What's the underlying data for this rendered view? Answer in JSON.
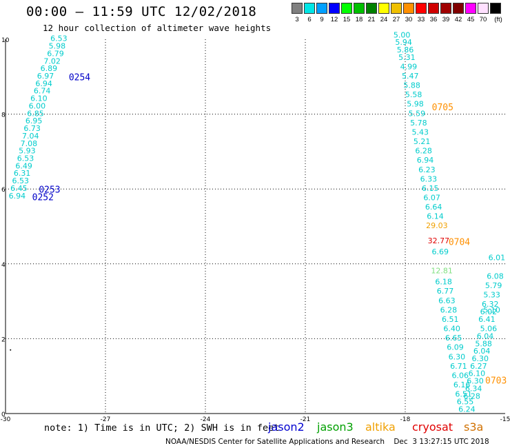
{
  "header": {
    "title": "00:00 – 11:59 UTC 12/02/2018",
    "subtitle": "12 hour collection of altimeter wave heights"
  },
  "color_scale": {
    "unit": "(ft)",
    "entries": [
      {
        "label": "3",
        "color": "#808080"
      },
      {
        "label": "6",
        "color": "#00e6e6"
      },
      {
        "label": "9",
        "color": "#00a0ff"
      },
      {
        "label": "12",
        "color": "#0000ff"
      },
      {
        "label": "15",
        "color": "#00ff00"
      },
      {
        "label": "18",
        "color": "#00c000"
      },
      {
        "label": "21",
        "color": "#008000"
      },
      {
        "label": "24",
        "color": "#ffff00"
      },
      {
        "label": "27",
        "color": "#f0c000"
      },
      {
        "label": "30",
        "color": "#ff9000"
      },
      {
        "label": "33",
        "color": "#ff0000"
      },
      {
        "label": "36",
        "color": "#d00000"
      },
      {
        "label": "39",
        "color": "#a00000"
      },
      {
        "label": "42",
        "color": "#800000"
      },
      {
        "label": "45",
        "color": "#ff00ff"
      },
      {
        "label": "70",
        "color": "#ffe0ff"
      },
      {
        "label": "(ft)",
        "color": "#000000"
      }
    ]
  },
  "map": {
    "lon_ticks": [
      "-30",
      "-27",
      "-24",
      "-21",
      "-18",
      "-15"
    ],
    "lat_ticks": [
      "0",
      "2",
      "4",
      "6",
      "8",
      "10"
    ],
    "lon_range": [
      -30,
      -15
    ],
    "lat_range": [
      0,
      10
    ],
    "grid_color": "#000000",
    "time_labels": [
      {
        "text": "0254",
        "lon": -28.1,
        "lat": 8.9,
        "color": "#0000c8"
      },
      {
        "text": "0253",
        "lon": -29.0,
        "lat": 5.9,
        "color": "#0000c8"
      },
      {
        "text": "0252",
        "lon": -29.2,
        "lat": 5.7,
        "color": "#0000c8"
      },
      {
        "text": "0705",
        "lon": -17.2,
        "lat": 8.1,
        "color": "#ff9000"
      },
      {
        "text": "0704",
        "lon": -16.7,
        "lat": 4.5,
        "color": "#ff9000"
      },
      {
        "text": "0703",
        "lon": -15.6,
        "lat": 0.8,
        "color": "#ff9000"
      }
    ],
    "wave_tracks": [
      {
        "name": "track-west",
        "points": [
          {
            "v": "6.53",
            "lon": -28.4,
            "lat": 9.95,
            "color": "#00cccc"
          },
          {
            "v": "5.98",
            "lon": -28.45,
            "lat": 9.75,
            "color": "#00cccc"
          },
          {
            "v": "6.79",
            "lon": -28.5,
            "lat": 9.55,
            "color": "#00cccc"
          },
          {
            "v": "7.02",
            "lon": -28.6,
            "lat": 9.35,
            "color": "#00cccc"
          },
          {
            "v": "6.89",
            "lon": -28.7,
            "lat": 9.15,
            "color": "#00cccc"
          },
          {
            "v": "6.97",
            "lon": -28.8,
            "lat": 8.95,
            "color": "#00cccc"
          },
          {
            "v": "6.94",
            "lon": -28.85,
            "lat": 8.75,
            "color": "#00cccc"
          },
          {
            "v": "6.74",
            "lon": -28.9,
            "lat": 8.55,
            "color": "#00cccc"
          },
          {
            "v": "6.10",
            "lon": -29.0,
            "lat": 8.35,
            "color": "#00cccc"
          },
          {
            "v": "6.00",
            "lon": -29.05,
            "lat": 8.15,
            "color": "#00cccc"
          },
          {
            "v": "6.85",
            "lon": -29.1,
            "lat": 7.95,
            "color": "#00cccc"
          },
          {
            "v": "6.95",
            "lon": -29.15,
            "lat": 7.75,
            "color": "#00cccc"
          },
          {
            "v": "6.73",
            "lon": -29.2,
            "lat": 7.55,
            "color": "#00cccc"
          },
          {
            "v": "7.04",
            "lon": -29.25,
            "lat": 7.35,
            "color": "#00cccc"
          },
          {
            "v": "7.08",
            "lon": -29.3,
            "lat": 7.15,
            "color": "#00cccc"
          },
          {
            "v": "5.93",
            "lon": -29.35,
            "lat": 6.95,
            "color": "#00cccc"
          },
          {
            "v": "6.53",
            "lon": -29.4,
            "lat": 6.75,
            "color": "#00cccc"
          },
          {
            "v": "6.49",
            "lon": -29.45,
            "lat": 6.55,
            "color": "#00cccc"
          },
          {
            "v": "6.31",
            "lon": -29.5,
            "lat": 6.35,
            "color": "#00cccc"
          },
          {
            "v": "6.53",
            "lon": -29.55,
            "lat": 6.15,
            "color": "#00cccc"
          },
          {
            "v": "6.45",
            "lon": -29.6,
            "lat": 5.95,
            "color": "#00cccc"
          },
          {
            "v": "6.94",
            "lon": -29.65,
            "lat": 5.75,
            "color": "#00cccc"
          }
        ]
      },
      {
        "name": "track-east-1",
        "points": [
          {
            "v": "5.00",
            "lon": -18.1,
            "lat": 10.05,
            "color": "#00cccc"
          },
          {
            "v": "5.94",
            "lon": -18.05,
            "lat": 9.85,
            "color": "#00cccc"
          },
          {
            "v": "5.86",
            "lon": -18.0,
            "lat": 9.65,
            "color": "#00cccc"
          },
          {
            "v": "5.31",
            "lon": -17.95,
            "lat": 9.45,
            "color": "#00cccc"
          },
          {
            "v": "4.99",
            "lon": -17.9,
            "lat": 9.2,
            "color": "#00cccc"
          },
          {
            "v": "5.47",
            "lon": -17.85,
            "lat": 8.95,
            "color": "#00cccc"
          },
          {
            "v": "5.88",
            "lon": -17.8,
            "lat": 8.7,
            "color": "#00cccc"
          },
          {
            "v": "5.58",
            "lon": -17.75,
            "lat": 8.45,
            "color": "#00cccc"
          },
          {
            "v": "5.98",
            "lon": -17.7,
            "lat": 8.2,
            "color": "#00cccc"
          },
          {
            "v": "5.59",
            "lon": -17.65,
            "lat": 7.95,
            "color": "#00cccc"
          },
          {
            "v": "5.78",
            "lon": -17.6,
            "lat": 7.7,
            "color": "#00cccc"
          },
          {
            "v": "5.43",
            "lon": -17.55,
            "lat": 7.45,
            "color": "#00cccc"
          },
          {
            "v": "5.21",
            "lon": -17.5,
            "lat": 7.2,
            "color": "#00cccc"
          },
          {
            "v": "6.28",
            "lon": -17.45,
            "lat": 6.95,
            "color": "#00cccc"
          },
          {
            "v": "6.94",
            "lon": -17.4,
            "lat": 6.7,
            "color": "#00cccc"
          },
          {
            "v": "6.23",
            "lon": -17.35,
            "lat": 6.45,
            "color": "#00cccc"
          },
          {
            "v": "6.33",
            "lon": -17.3,
            "lat": 6.2,
            "color": "#00cccc"
          },
          {
            "v": "6.15",
            "lon": -17.25,
            "lat": 5.95,
            "color": "#00cccc"
          },
          {
            "v": "6.07",
            "lon": -17.2,
            "lat": 5.7,
            "color": "#00cccc"
          },
          {
            "v": "6.64",
            "lon": -17.15,
            "lat": 5.45,
            "color": "#00cccc"
          },
          {
            "v": "6.14",
            "lon": -17.1,
            "lat": 5.2,
            "color": "#00cccc"
          },
          {
            "v": "29.03",
            "lon": -17.05,
            "lat": 4.95,
            "color": "#f0a000"
          },
          {
            "v": "32.77",
            "lon": -17.0,
            "lat": 4.55,
            "color": "#e00000"
          },
          {
            "v": "6.69",
            "lon": -16.95,
            "lat": 4.25,
            "color": "#00cccc"
          },
          {
            "v": "12.81",
            "lon": -16.9,
            "lat": 3.75,
            "color": "#80e080"
          },
          {
            "v": "6.18",
            "lon": -16.85,
            "lat": 3.45,
            "color": "#00cccc"
          },
          {
            "v": "6.77",
            "lon": -16.8,
            "lat": 3.2,
            "color": "#00cccc"
          },
          {
            "v": "6.63",
            "lon": -16.75,
            "lat": 2.95,
            "color": "#00cccc"
          },
          {
            "v": "6.28",
            "lon": -16.7,
            "lat": 2.7,
            "color": "#00cccc"
          },
          {
            "v": "6.51",
            "lon": -16.65,
            "lat": 2.45,
            "color": "#00cccc"
          },
          {
            "v": "6.40",
            "lon": -16.6,
            "lat": 2.2,
            "color": "#00cccc"
          },
          {
            "v": "6.65",
            "lon": -16.55,
            "lat": 1.95,
            "color": "#00cccc"
          },
          {
            "v": "6.09",
            "lon": -16.5,
            "lat": 1.7,
            "color": "#00cccc"
          },
          {
            "v": "6.30",
            "lon": -16.45,
            "lat": 1.45,
            "color": "#00cccc"
          },
          {
            "v": "6.71",
            "lon": -16.4,
            "lat": 1.2,
            "color": "#00cccc"
          },
          {
            "v": "6.06",
            "lon": -16.35,
            "lat": 0.95,
            "color": "#00cccc"
          },
          {
            "v": "6.16",
            "lon": -16.3,
            "lat": 0.7,
            "color": "#00cccc"
          },
          {
            "v": "6.51",
            "lon": -16.25,
            "lat": 0.45,
            "color": "#00cccc"
          },
          {
            "v": "6.55",
            "lon": -16.2,
            "lat": 0.25,
            "color": "#00cccc"
          },
          {
            "v": "6.24",
            "lon": -16.15,
            "lat": 0.05,
            "color": "#00cccc"
          }
        ]
      },
      {
        "name": "track-east-2",
        "points": [
          {
            "v": "6.04",
            "lon": -15.6,
            "lat": 2.0,
            "color": "#00cccc"
          },
          {
            "v": "5.88",
            "lon": -15.65,
            "lat": 1.8,
            "color": "#00cccc"
          },
          {
            "v": "6.04",
            "lon": -15.7,
            "lat": 1.6,
            "color": "#00cccc"
          },
          {
            "v": "6.30",
            "lon": -15.75,
            "lat": 1.4,
            "color": "#00cccc"
          },
          {
            "v": "6.27",
            "lon": -15.8,
            "lat": 1.2,
            "color": "#00cccc"
          },
          {
            "v": "6.10",
            "lon": -15.85,
            "lat": 1.0,
            "color": "#00cccc"
          },
          {
            "v": "6.30",
            "lon": -15.9,
            "lat": 0.8,
            "color": "#00cccc"
          },
          {
            "v": "6.34",
            "lon": -15.95,
            "lat": 0.6,
            "color": "#00cccc"
          },
          {
            "v": "6.28",
            "lon": -16.0,
            "lat": 0.4,
            "color": "#00cccc"
          }
        ]
      },
      {
        "name": "track-east-3",
        "points": [
          {
            "v": "6.01",
            "lon": -15.25,
            "lat": 4.1,
            "color": "#00cccc"
          },
          {
            "v": "6.08",
            "lon": -15.3,
            "lat": 3.6,
            "color": "#00cccc"
          },
          {
            "v": "5.79",
            "lon": -15.35,
            "lat": 3.35,
            "color": "#00cccc"
          },
          {
            "v": "5.33",
            "lon": -15.4,
            "lat": 3.1,
            "color": "#00cccc"
          },
          {
            "v": "6.32",
            "lon": -15.45,
            "lat": 2.85,
            "color": "#00cccc"
          },
          {
            "v": "6.02",
            "lon": -15.5,
            "lat": 2.65,
            "color": "#00cccc"
          },
          {
            "v": "6.41",
            "lon": -15.55,
            "lat": 2.45,
            "color": "#00cccc"
          },
          {
            "v": "5.06",
            "lon": -15.5,
            "lat": 2.2,
            "color": "#00cccc"
          },
          {
            "v": "5.10",
            "lon": -15.4,
            "lat": 2.7,
            "color": "#00cccc"
          }
        ]
      }
    ]
  },
  "legend": {
    "note": "note: 1) Time is in UTC; 2) SWH is in feet",
    "satellites": [
      {
        "label": "jason2",
        "color": "#0000d0"
      },
      {
        "label": "jason3",
        "color": "#00a000"
      },
      {
        "label": "altika",
        "color": "#f0a000"
      },
      {
        "label": "cryosat",
        "color": "#e00000"
      },
      {
        "label": "s3a",
        "color": "#d07000"
      }
    ]
  },
  "footer": {
    "credit": "NOAA/NESDIS Center for Satellite Applications and Research    Dec  3 13:27:15 UTC 2018"
  }
}
